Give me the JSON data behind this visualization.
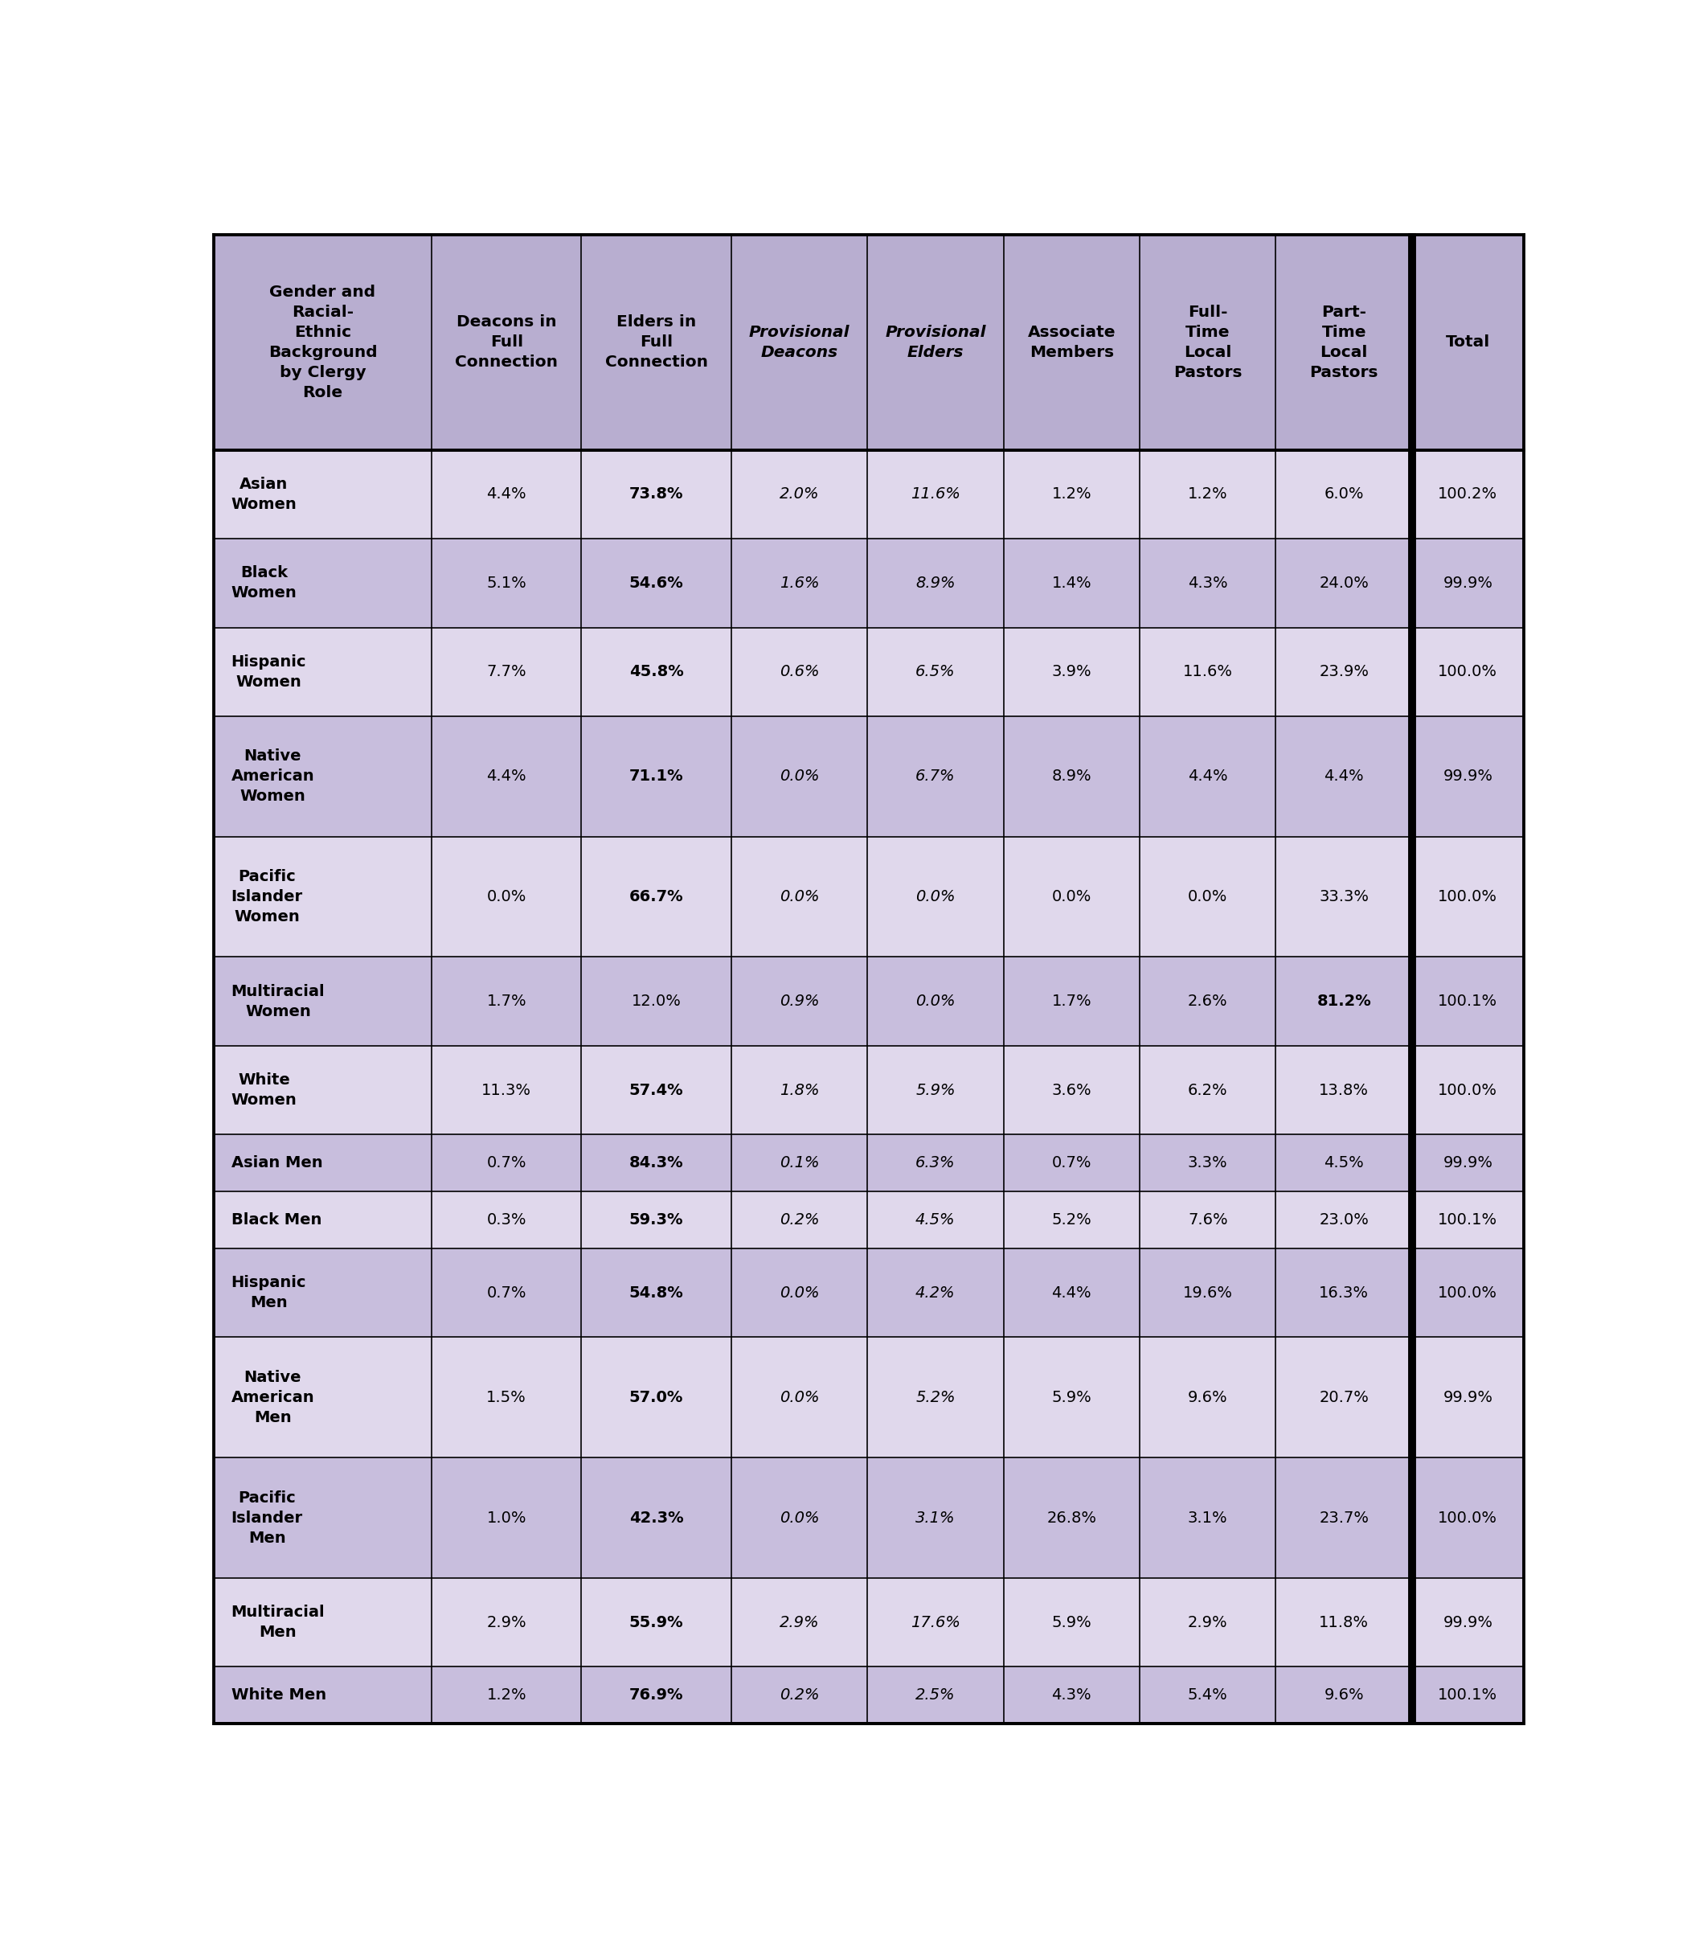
{
  "col_headers": [
    "Gender and\nRacial-\nEthnic\nBackground\nby Clergy\nRole",
    "Deacons in\nFull\nConnection",
    "Elders in\nFull\nConnection",
    "Provisional\nDeacons",
    "Provisional\nElders",
    "Associate\nMembers",
    "Full-\nTime\nLocal\nPastors",
    "Part-\nTime\nLocal\nPastors",
    "Total"
  ],
  "col_header_italic": [
    false,
    false,
    false,
    true,
    true,
    false,
    false,
    false,
    false
  ],
  "rows": [
    {
      "label": "Asian\nWomen",
      "values": [
        "4.4%",
        "73.8%",
        "2.0%",
        "11.6%",
        "1.2%",
        "1.2%",
        "6.0%",
        "100.2%"
      ],
      "bold_idx": [
        1
      ],
      "label_lines": 2
    },
    {
      "label": "Black\nWomen",
      "values": [
        "5.1%",
        "54.6%",
        "1.6%",
        "8.9%",
        "1.4%",
        "4.3%",
        "24.0%",
        "99.9%"
      ],
      "bold_idx": [
        1
      ],
      "label_lines": 2
    },
    {
      "label": "Hispanic\nWomen",
      "values": [
        "7.7%",
        "45.8%",
        "0.6%",
        "6.5%",
        "3.9%",
        "11.6%",
        "23.9%",
        "100.0%"
      ],
      "bold_idx": [
        1
      ],
      "label_lines": 2
    },
    {
      "label": "Native\nAmerican\nWomen",
      "values": [
        "4.4%",
        "71.1%",
        "0.0%",
        "6.7%",
        "8.9%",
        "4.4%",
        "4.4%",
        "99.9%"
      ],
      "bold_idx": [
        1
      ],
      "label_lines": 3
    },
    {
      "label": "Pacific\nIslander\nWomen",
      "values": [
        "0.0%",
        "66.7%",
        "0.0%",
        "0.0%",
        "0.0%",
        "0.0%",
        "33.3%",
        "100.0%"
      ],
      "bold_idx": [
        1
      ],
      "label_lines": 3
    },
    {
      "label": "Multiracial\nWomen",
      "values": [
        "1.7%",
        "12.0%",
        "0.9%",
        "0.0%",
        "1.7%",
        "2.6%",
        "81.2%",
        "100.1%"
      ],
      "bold_idx": [
        6
      ],
      "label_lines": 2
    },
    {
      "label": "White\nWomen",
      "values": [
        "11.3%",
        "57.4%",
        "1.8%",
        "5.9%",
        "3.6%",
        "6.2%",
        "13.8%",
        "100.0%"
      ],
      "bold_idx": [
        1
      ],
      "label_lines": 2
    },
    {
      "label": "Asian Men",
      "values": [
        "0.7%",
        "84.3%",
        "0.1%",
        "6.3%",
        "0.7%",
        "3.3%",
        "4.5%",
        "99.9%"
      ],
      "bold_idx": [
        1
      ],
      "label_lines": 1
    },
    {
      "label": "Black Men",
      "values": [
        "0.3%",
        "59.3%",
        "0.2%",
        "4.5%",
        "5.2%",
        "7.6%",
        "23.0%",
        "100.1%"
      ],
      "bold_idx": [
        1
      ],
      "label_lines": 1
    },
    {
      "label": "Hispanic\nMen",
      "values": [
        "0.7%",
        "54.8%",
        "0.0%",
        "4.2%",
        "4.4%",
        "19.6%",
        "16.3%",
        "100.0%"
      ],
      "bold_idx": [
        1
      ],
      "label_lines": 2
    },
    {
      "label": "Native\nAmerican\nMen",
      "values": [
        "1.5%",
        "57.0%",
        "0.0%",
        "5.2%",
        "5.9%",
        "9.6%",
        "20.7%",
        "99.9%"
      ],
      "bold_idx": [
        1
      ],
      "label_lines": 3
    },
    {
      "label": "Pacific\nIslander\nMen",
      "values": [
        "1.0%",
        "42.3%",
        "0.0%",
        "3.1%",
        "26.8%",
        "3.1%",
        "23.7%",
        "100.0%"
      ],
      "bold_idx": [
        1
      ],
      "label_lines": 3
    },
    {
      "label": "Multiracial\nMen",
      "values": [
        "2.9%",
        "55.9%",
        "2.9%",
        "17.6%",
        "5.9%",
        "2.9%",
        "11.8%",
        "99.9%"
      ],
      "bold_idx": [
        1
      ],
      "label_lines": 2
    },
    {
      "label": "White Men",
      "values": [
        "1.2%",
        "76.9%",
        "0.2%",
        "2.5%",
        "4.3%",
        "5.4%",
        "9.6%",
        "100.1%"
      ],
      "bold_idx": [
        1
      ],
      "label_lines": 1
    }
  ],
  "header_bg": "#b8aed0",
  "row_bg_light": "#e0d8ec",
  "row_bg_dark": "#c8bedd",
  "text_color": "#000000",
  "border_color": "#000000",
  "total_col_idx": 8,
  "italic_data_cols": [
    2,
    3
  ],
  "fontsize_header": 14.5,
  "fontsize_data": 14.0,
  "col_widths_rel": [
    1.6,
    1.1,
    1.1,
    1.0,
    1.0,
    1.0,
    1.0,
    1.0,
    0.82
  ],
  "row_height_lines": [
    2,
    2,
    2,
    3,
    3,
    2,
    2,
    1,
    1,
    2,
    3,
    3,
    2,
    1
  ]
}
